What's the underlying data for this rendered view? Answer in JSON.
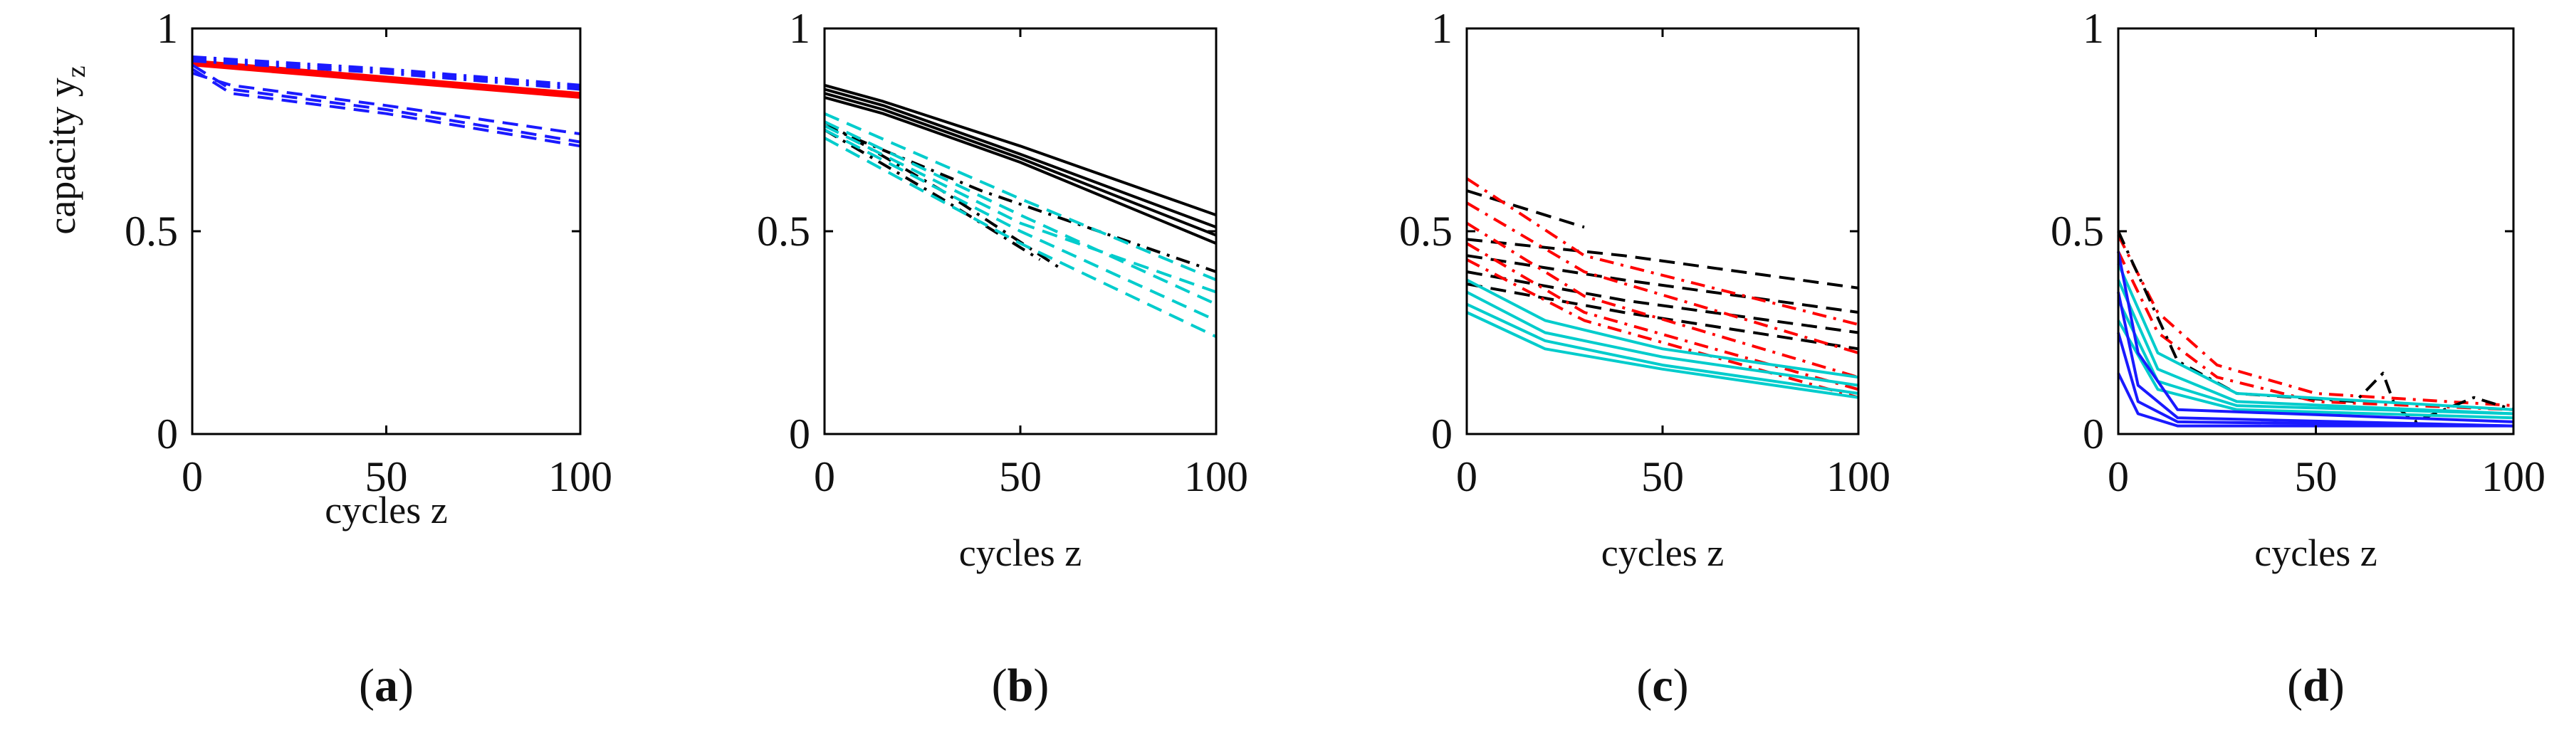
{
  "chart_data": [
    {
      "type": "line",
      "panel": "a",
      "caption_open": "(",
      "caption_letter": "a",
      "caption_close": ")",
      "xlabel": "cycles z",
      "ylabel_main": "capacity y",
      "ylabel_sub": "z",
      "xlim": [
        0,
        100
      ],
      "ylim": [
        0,
        1
      ],
      "xticks": [
        0,
        50,
        100
      ],
      "xtick_labels": [
        "0",
        "50",
        "100"
      ],
      "yticks": [
        0,
        0.5,
        1
      ],
      "ytick_labels": [
        "0",
        "0.5",
        "1"
      ],
      "series": [
        {
          "name": "a-red-1",
          "color": "#ff0000",
          "style": "solid",
          "x": [
            0,
            50,
            100
          ],
          "y": [
            0.91,
            0.87,
            0.83
          ]
        },
        {
          "name": "a-red-2",
          "color": "#ff0000",
          "style": "solid",
          "x": [
            0,
            50,
            100
          ],
          "y": [
            0.92,
            0.88,
            0.84
          ]
        },
        {
          "name": "a-red-3",
          "color": "#ff0000",
          "style": "solid",
          "x": [
            0,
            50,
            100
          ],
          "y": [
            0.915,
            0.875,
            0.835
          ]
        },
        {
          "name": "a-blue-1",
          "color": "#1a1aff",
          "style": "dashdot",
          "x": [
            0,
            50,
            100
          ],
          "y": [
            0.93,
            0.9,
            0.86
          ]
        },
        {
          "name": "a-blue-2",
          "color": "#1a1aff",
          "style": "dashdot",
          "x": [
            0,
            50,
            100
          ],
          "y": [
            0.92,
            0.89,
            0.85
          ]
        },
        {
          "name": "a-blue-3",
          "color": "#1a1aff",
          "style": "dashdot",
          "x": [
            0,
            50,
            100
          ],
          "y": [
            0.925,
            0.895,
            0.855
          ]
        },
        {
          "name": "a-blue-4",
          "color": "#1a1aff",
          "style": "dashed",
          "x": [
            0,
            10,
            50,
            100
          ],
          "y": [
            0.9,
            0.84,
            0.79,
            0.71
          ]
        },
        {
          "name": "a-blue-5",
          "color": "#1a1aff",
          "style": "dashed",
          "x": [
            0,
            10,
            50,
            100
          ],
          "y": [
            0.89,
            0.86,
            0.81,
            0.74
          ]
        },
        {
          "name": "a-blue-6",
          "color": "#1a1aff",
          "style": "dashed",
          "x": [
            0,
            10,
            50,
            100
          ],
          "y": [
            0.91,
            0.85,
            0.8,
            0.72
          ]
        }
      ]
    },
    {
      "type": "line",
      "panel": "b",
      "caption_open": "(",
      "caption_letter": "b",
      "caption_close": ")",
      "xlabel": "cycles z",
      "xlim": [
        0,
        100
      ],
      "ylim": [
        0,
        1
      ],
      "xticks": [
        0,
        50,
        100
      ],
      "xtick_labels": [
        "0",
        "50",
        "100"
      ],
      "yticks": [
        0,
        0.5,
        1
      ],
      "ytick_labels": [
        "0",
        "0.5",
        "1"
      ],
      "series": [
        {
          "name": "b-black-solid-1",
          "color": "#000000",
          "style": "solid",
          "x": [
            0,
            15,
            50,
            100
          ],
          "y": [
            0.86,
            0.82,
            0.71,
            0.54
          ]
        },
        {
          "name": "b-black-solid-2",
          "color": "#000000",
          "style": "solid",
          "x": [
            0,
            15,
            50,
            100
          ],
          "y": [
            0.85,
            0.81,
            0.69,
            0.51
          ]
        },
        {
          "name": "b-black-solid-3",
          "color": "#000000",
          "style": "solid",
          "x": [
            0,
            15,
            50,
            100
          ],
          "y": [
            0.84,
            0.8,
            0.68,
            0.49
          ]
        },
        {
          "name": "b-black-solid-4",
          "color": "#000000",
          "style": "solid",
          "x": [
            0,
            15,
            50,
            100
          ],
          "y": [
            0.83,
            0.79,
            0.67,
            0.47
          ]
        },
        {
          "name": "b-black-dash-1",
          "color": "#000000",
          "style": "dashdot",
          "x": [
            0,
            30,
            60
          ],
          "y": [
            0.77,
            0.6,
            0.41
          ]
        },
        {
          "name": "b-black-dash-2",
          "color": "#000000",
          "style": "dashdot",
          "x": [
            0,
            30,
            55
          ],
          "y": [
            0.75,
            0.58,
            0.43
          ]
        },
        {
          "name": "b-black-dash-3",
          "color": "#000000",
          "style": "dashdot",
          "x": [
            0,
            40,
            100
          ],
          "y": [
            0.76,
            0.6,
            0.4
          ]
        },
        {
          "name": "b-cyan-1",
          "color": "#00cccc",
          "style": "dashed",
          "x": [
            0,
            50,
            100
          ],
          "y": [
            0.79,
            0.58,
            0.38
          ]
        },
        {
          "name": "b-cyan-2",
          "color": "#00cccc",
          "style": "dashed",
          "x": [
            0,
            50,
            100
          ],
          "y": [
            0.77,
            0.54,
            0.32
          ]
        },
        {
          "name": "b-cyan-3",
          "color": "#00cccc",
          "style": "dashed",
          "x": [
            0,
            50,
            100
          ],
          "y": [
            0.75,
            0.5,
            0.28
          ]
        },
        {
          "name": "b-cyan-4",
          "color": "#00cccc",
          "style": "dashed",
          "x": [
            0,
            50,
            100
          ],
          "y": [
            0.73,
            0.47,
            0.24
          ]
        },
        {
          "name": "b-cyan-5",
          "color": "#00cccc",
          "style": "dashed",
          "x": [
            0,
            50,
            100
          ],
          "y": [
            0.76,
            0.52,
            0.35
          ]
        }
      ]
    },
    {
      "type": "line",
      "panel": "c",
      "caption_open": "(",
      "caption_letter": "c",
      "caption_close": ")",
      "xlabel": "cycles z",
      "xlim": [
        0,
        100
      ],
      "ylim": [
        0,
        1
      ],
      "xticks": [
        0,
        50,
        100
      ],
      "xtick_labels": [
        "0",
        "50",
        "100"
      ],
      "yticks": [
        0,
        0.5,
        1
      ],
      "ytick_labels": [
        "0",
        "0.5",
        "1"
      ],
      "series": [
        {
          "name": "c-black-1",
          "color": "#000000",
          "style": "dashed",
          "x": [
            0,
            30
          ],
          "y": [
            0.6,
            0.51
          ]
        },
        {
          "name": "c-black-2",
          "color": "#000000",
          "style": "dashed",
          "x": [
            0,
            40,
            100
          ],
          "y": [
            0.48,
            0.44,
            0.36
          ]
        },
        {
          "name": "c-black-3",
          "color": "#000000",
          "style": "dashed",
          "x": [
            0,
            40,
            100
          ],
          "y": [
            0.44,
            0.38,
            0.3
          ]
        },
        {
          "name": "c-black-4",
          "color": "#000000",
          "style": "dashed",
          "x": [
            0,
            40,
            100
          ],
          "y": [
            0.4,
            0.33,
            0.25
          ]
        },
        {
          "name": "c-black-5",
          "color": "#000000",
          "style": "dashed",
          "x": [
            0,
            40,
            100
          ],
          "y": [
            0.37,
            0.3,
            0.21
          ]
        },
        {
          "name": "c-red-1",
          "color": "#ff0000",
          "style": "dashdot",
          "x": [
            0,
            30,
            100
          ],
          "y": [
            0.63,
            0.44,
            0.27
          ]
        },
        {
          "name": "c-red-2",
          "color": "#ff0000",
          "style": "dashdot",
          "x": [
            0,
            30,
            100
          ],
          "y": [
            0.57,
            0.4,
            0.2
          ]
        },
        {
          "name": "c-red-3",
          "color": "#ff0000",
          "style": "dashdot",
          "x": [
            0,
            30,
            100
          ],
          "y": [
            0.52,
            0.34,
            0.14
          ]
        },
        {
          "name": "c-red-4",
          "color": "#ff0000",
          "style": "dashdot",
          "x": [
            0,
            30,
            100
          ],
          "y": [
            0.47,
            0.3,
            0.11
          ]
        },
        {
          "name": "c-red-5",
          "color": "#ff0000",
          "style": "dashdot",
          "x": [
            0,
            30,
            100
          ],
          "y": [
            0.43,
            0.28,
            0.09
          ]
        },
        {
          "name": "c-cyan-1",
          "color": "#00cccc",
          "style": "solid",
          "x": [
            0,
            20,
            50,
            100
          ],
          "y": [
            0.38,
            0.28,
            0.21,
            0.14
          ]
        },
        {
          "name": "c-cyan-2",
          "color": "#00cccc",
          "style": "solid",
          "x": [
            0,
            20,
            50,
            100
          ],
          "y": [
            0.35,
            0.25,
            0.19,
            0.12
          ]
        },
        {
          "name": "c-cyan-3",
          "color": "#00cccc",
          "style": "solid",
          "x": [
            0,
            20,
            50,
            100
          ],
          "y": [
            0.32,
            0.23,
            0.17,
            0.1
          ]
        },
        {
          "name": "c-cyan-4",
          "color": "#00cccc",
          "style": "solid",
          "x": [
            0,
            20,
            50,
            100
          ],
          "y": [
            0.3,
            0.21,
            0.16,
            0.09
          ]
        }
      ]
    },
    {
      "type": "line",
      "panel": "d",
      "caption_open": "(",
      "caption_letter": "d",
      "caption_close": ")",
      "xlabel": "cycles z",
      "xlim": [
        0,
        100
      ],
      "ylim": [
        0,
        1
      ],
      "xticks": [
        0,
        50,
        100
      ],
      "xtick_labels": [
        "0",
        "50",
        "100"
      ],
      "yticks": [
        0,
        0.5,
        1
      ],
      "ytick_labels": [
        "0",
        "0.5",
        "1"
      ],
      "series": [
        {
          "name": "d-red-1",
          "color": "#ff0000",
          "style": "dashdot",
          "x": [
            0,
            10,
            25,
            50,
            100
          ],
          "y": [
            0.49,
            0.3,
            0.17,
            0.1,
            0.07
          ]
        },
        {
          "name": "d-red-2",
          "color": "#ff0000",
          "style": "dashdot",
          "x": [
            0,
            10,
            25,
            50,
            100
          ],
          "y": [
            0.45,
            0.25,
            0.14,
            0.08,
            0.06
          ]
        },
        {
          "name": "d-black-1",
          "color": "#000000",
          "style": "dashdot",
          "x": [
            0,
            15,
            30,
            60,
            67,
            70,
            75,
            90,
            100
          ],
          "y": [
            0.5,
            0.18,
            0.1,
            0.08,
            0.15,
            0.07,
            0.03,
            0.09,
            0.06
          ]
        },
        {
          "name": "d-cyan-1",
          "color": "#00cccc",
          "style": "solid",
          "x": [
            0,
            10,
            30,
            100
          ],
          "y": [
            0.42,
            0.2,
            0.1,
            0.06
          ]
        },
        {
          "name": "d-cyan-2",
          "color": "#00cccc",
          "style": "solid",
          "x": [
            0,
            10,
            30,
            100
          ],
          "y": [
            0.38,
            0.16,
            0.08,
            0.05
          ]
        },
        {
          "name": "d-cyan-3",
          "color": "#00cccc",
          "style": "solid",
          "x": [
            0,
            10,
            30,
            100
          ],
          "y": [
            0.33,
            0.13,
            0.07,
            0.05
          ]
        },
        {
          "name": "d-cyan-4",
          "color": "#00cccc",
          "style": "solid",
          "x": [
            0,
            10,
            30,
            100
          ],
          "y": [
            0.28,
            0.11,
            0.06,
            0.04
          ]
        },
        {
          "name": "d-blue-1",
          "color": "#1a1aff",
          "style": "solid",
          "x": [
            0,
            5,
            15,
            100
          ],
          "y": [
            0.45,
            0.2,
            0.06,
            0.03
          ]
        },
        {
          "name": "d-blue-2",
          "color": "#1a1aff",
          "style": "solid",
          "x": [
            0,
            5,
            15,
            100
          ],
          "y": [
            0.35,
            0.12,
            0.04,
            0.02
          ]
        },
        {
          "name": "d-blue-3",
          "color": "#1a1aff",
          "style": "solid",
          "x": [
            0,
            5,
            15,
            100
          ],
          "y": [
            0.25,
            0.08,
            0.03,
            0.02
          ]
        },
        {
          "name": "d-blue-4",
          "color": "#1a1aff",
          "style": "solid",
          "x": [
            0,
            5,
            15,
            100
          ],
          "y": [
            0.15,
            0.05,
            0.02,
            0.02
          ]
        }
      ]
    }
  ]
}
